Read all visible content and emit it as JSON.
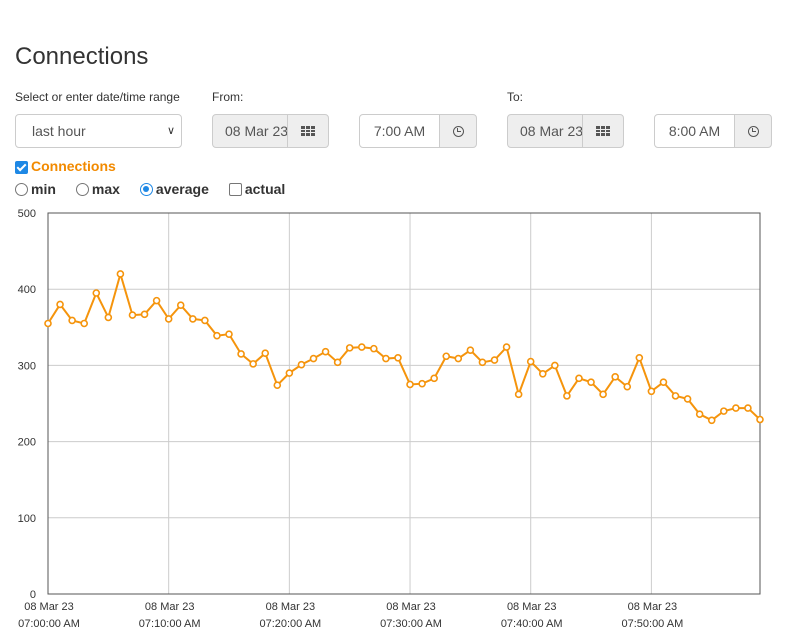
{
  "page": {
    "title": "Connections"
  },
  "range": {
    "label": "Select or enter date/time range",
    "selected": "last hour"
  },
  "from": {
    "label": "From:",
    "date": "08 Mar 23",
    "time": "7:00 AM"
  },
  "to": {
    "label": "To:",
    "date": "08 Mar 23",
    "time": "8:00 AM"
  },
  "series_toggle": {
    "label": "Connections",
    "checked": true
  },
  "aggregation": {
    "options": [
      {
        "label": "min",
        "type": "radio",
        "selected": false
      },
      {
        "label": "max",
        "type": "radio",
        "selected": false
      },
      {
        "label": "average",
        "type": "radio",
        "selected": true
      },
      {
        "label": "actual",
        "type": "checkbox",
        "selected": false
      }
    ]
  },
  "colors": {
    "series": "#f5940c",
    "grid": "#cccccc",
    "accent": "#1e88e5",
    "label": "#f28a00"
  },
  "icons": {
    "date": "calendar-grid-icon",
    "time": "clock-icon"
  },
  "chart_data": {
    "type": "line",
    "title": "",
    "xlabel": "",
    "ylabel": "",
    "ylim": [
      0,
      500
    ],
    "yticks": [
      "0",
      "100",
      "200",
      "300",
      "400",
      "500"
    ],
    "xticks": [
      {
        "date": "08 Mar 23",
        "time": "07:00:00 AM"
      },
      {
        "date": "08 Mar 23",
        "time": "07:10:00 AM"
      },
      {
        "date": "08 Mar 23",
        "time": "07:20:00 AM"
      },
      {
        "date": "08 Mar 23",
        "time": "07:30:00 AM"
      },
      {
        "date": "08 Mar 23",
        "time": "07:40:00 AM"
      },
      {
        "date": "08 Mar 23",
        "time": "07:50:00 AM"
      }
    ],
    "xlim_minutes": [
      0,
      59
    ],
    "grid": true,
    "series": [
      {
        "name": "Connections",
        "x_minutes": [
          0,
          1,
          2,
          3,
          4,
          5,
          6,
          7,
          8,
          9,
          10,
          11,
          12,
          13,
          14,
          15,
          16,
          17,
          18,
          19,
          20,
          21,
          22,
          23,
          24,
          25,
          26,
          27,
          28,
          29,
          30,
          31,
          32,
          33,
          34,
          35,
          36,
          37,
          38,
          39,
          40,
          41,
          42,
          43,
          44,
          45,
          46,
          47,
          48,
          49,
          50,
          51,
          52,
          53,
          54,
          55,
          56,
          57,
          58,
          59
        ],
        "values": [
          355,
          380,
          359,
          355,
          395,
          363,
          420,
          366,
          367,
          385,
          361,
          379,
          361,
          359,
          339,
          341,
          315,
          302,
          316,
          274,
          290,
          301,
          309,
          318,
          304,
          323,
          324,
          322,
          309,
          310,
          275,
          276,
          283,
          312,
          309,
          320,
          304,
          307,
          324,
          262,
          305,
          289,
          300,
          260,
          283,
          278,
          262,
          285,
          272,
          310,
          266,
          278,
          260,
          256,
          236,
          228,
          240,
          244,
          244,
          229
        ]
      }
    ]
  }
}
